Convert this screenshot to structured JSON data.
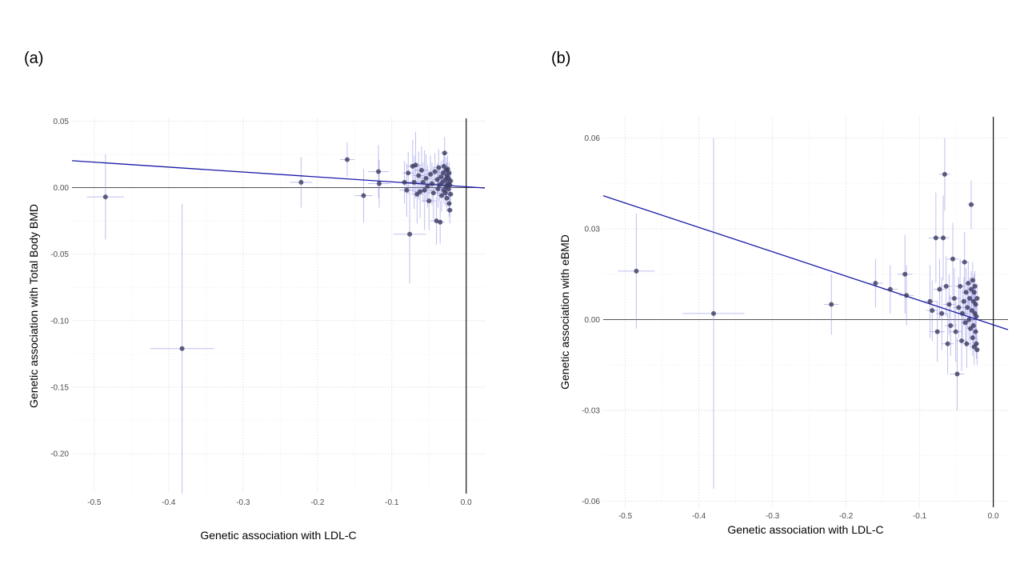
{
  "panels": [
    {
      "label": "(a)"
    },
    {
      "label": "(b)"
    }
  ],
  "chart_data": [
    {
      "type": "scatter",
      "xlabel": "Genetic association with LDL-C",
      "ylabel": "Genetic association with Total Body BMD",
      "xlim": [
        -0.53,
        0.025
      ],
      "ylim": [
        -0.23,
        0.052
      ],
      "xticks": [
        -0.5,
        -0.4,
        -0.3,
        -0.2,
        -0.1,
        0.0
      ],
      "xtick_labels": [
        "-0.5",
        "-0.4",
        "-0.3",
        "-0.2",
        "-0.1",
        "0.0"
      ],
      "yticks": [
        0.05,
        0.0,
        -0.05,
        -0.1,
        -0.15,
        -0.2
      ],
      "ytick_labels": [
        "0.05",
        "0.00",
        "-0.05",
        "-0.10",
        "-0.15",
        "-0.20"
      ],
      "grid": true,
      "regression_line": {
        "slope": -0.037,
        "intercept": 0.0006
      },
      "points": [
        {
          "x": -0.485,
          "y": -0.007,
          "xerr": 0.025,
          "yerr": 0.032
        },
        {
          "x": -0.382,
          "y": -0.121,
          "xerr": 0.043,
          "yerr": 0.109
        },
        {
          "x": -0.222,
          "y": 0.004,
          "xerr": 0.015,
          "yerr": 0.019
        },
        {
          "x": -0.16,
          "y": 0.021,
          "xerr": 0.01,
          "yerr": 0.013
        },
        {
          "x": -0.138,
          "y": -0.006,
          "xerr": 0.012,
          "yerr": 0.02
        },
        {
          "x": -0.118,
          "y": 0.012,
          "xerr": 0.014,
          "yerr": 0.02
        },
        {
          "x": -0.117,
          "y": 0.003,
          "xerr": 0.015,
          "yerr": 0.018
        },
        {
          "x": -0.083,
          "y": 0.004,
          "xerr": 0.01,
          "yerr": 0.016
        },
        {
          "x": -0.08,
          "y": -0.002,
          "xerr": 0.01,
          "yerr": 0.02
        },
        {
          "x": -0.078,
          "y": 0.011,
          "xerr": 0.008,
          "yerr": 0.016
        },
        {
          "x": -0.076,
          "y": -0.035,
          "xerr": 0.022,
          "yerr": 0.037
        },
        {
          "x": -0.072,
          "y": 0.016,
          "xerr": 0.008,
          "yerr": 0.02
        },
        {
          "x": -0.07,
          "y": 0.004,
          "xerr": 0.01,
          "yerr": 0.02
        },
        {
          "x": -0.068,
          "y": 0.017,
          "xerr": 0.008,
          "yerr": 0.025
        },
        {
          "x": -0.066,
          "y": -0.005,
          "xerr": 0.008,
          "yerr": 0.022
        },
        {
          "x": -0.064,
          "y": 0.009,
          "xerr": 0.008,
          "yerr": 0.018
        },
        {
          "x": -0.062,
          "y": -0.003,
          "xerr": 0.008,
          "yerr": 0.02
        },
        {
          "x": -0.06,
          "y": 0.013,
          "xerr": 0.01,
          "yerr": 0.018
        },
        {
          "x": -0.058,
          "y": 0.004,
          "xerr": 0.008,
          "yerr": 0.015
        },
        {
          "x": -0.056,
          "y": -0.002,
          "xerr": 0.01,
          "yerr": 0.03
        },
        {
          "x": -0.054,
          "y": 0.007,
          "xerr": 0.008,
          "yerr": 0.018
        },
        {
          "x": -0.052,
          "y": 0.001,
          "xerr": 0.008,
          "yerr": 0.016
        },
        {
          "x": -0.05,
          "y": -0.01,
          "xerr": 0.01,
          "yerr": 0.022
        },
        {
          "x": -0.048,
          "y": 0.01,
          "xerr": 0.008,
          "yerr": 0.014
        },
        {
          "x": -0.046,
          "y": 0.003,
          "xerr": 0.007,
          "yerr": 0.016
        },
        {
          "x": -0.044,
          "y": -0.004,
          "xerr": 0.008,
          "yerr": 0.02
        },
        {
          "x": -0.042,
          "y": 0.012,
          "xerr": 0.007,
          "yerr": 0.014
        },
        {
          "x": -0.04,
          "y": -0.025,
          "xerr": 0.008,
          "yerr": 0.018
        },
        {
          "x": -0.039,
          "y": 0.006,
          "xerr": 0.007,
          "yerr": 0.012
        },
        {
          "x": -0.038,
          "y": -0.001,
          "xerr": 0.007,
          "yerr": 0.014
        },
        {
          "x": -0.037,
          "y": 0.015,
          "xerr": 0.006,
          "yerr": 0.014
        },
        {
          "x": -0.036,
          "y": 0.002,
          "xerr": 0.006,
          "yerr": 0.012
        },
        {
          "x": -0.035,
          "y": -0.026,
          "xerr": 0.006,
          "yerr": 0.016
        },
        {
          "x": -0.034,
          "y": 0.008,
          "xerr": 0.006,
          "yerr": 0.012
        },
        {
          "x": -0.033,
          "y": -0.006,
          "xerr": 0.006,
          "yerr": 0.012
        },
        {
          "x": -0.032,
          "y": 0.004,
          "xerr": 0.006,
          "yerr": 0.01
        },
        {
          "x": -0.031,
          "y": 0.011,
          "xerr": 0.005,
          "yerr": 0.01
        },
        {
          "x": -0.03,
          "y": 0.016,
          "xerr": 0.005,
          "yerr": 0.01
        },
        {
          "x": -0.03,
          "y": -0.002,
          "xerr": 0.005,
          "yerr": 0.01
        },
        {
          "x": -0.029,
          "y": 0.026,
          "xerr": 0.005,
          "yerr": 0.012
        },
        {
          "x": -0.028,
          "y": 0.006,
          "xerr": 0.005,
          "yerr": 0.01
        },
        {
          "x": -0.028,
          "y": -0.004,
          "xerr": 0.005,
          "yerr": 0.01
        },
        {
          "x": -0.027,
          "y": 0.013,
          "xerr": 0.005,
          "yerr": 0.01
        },
        {
          "x": -0.027,
          "y": 0.001,
          "xerr": 0.005,
          "yerr": 0.008
        },
        {
          "x": -0.026,
          "y": 0.009,
          "xerr": 0.004,
          "yerr": 0.01
        },
        {
          "x": -0.026,
          "y": -0.008,
          "xerr": 0.004,
          "yerr": 0.01
        },
        {
          "x": -0.025,
          "y": 0.003,
          "xerr": 0.004,
          "yerr": 0.008
        },
        {
          "x": -0.025,
          "y": 0.014,
          "xerr": 0.004,
          "yerr": 0.01
        },
        {
          "x": -0.024,
          "y": -0.001,
          "xerr": 0.004,
          "yerr": 0.008
        },
        {
          "x": -0.024,
          "y": 0.007,
          "xerr": 0.004,
          "yerr": 0.008
        },
        {
          "x": -0.023,
          "y": -0.012,
          "xerr": 0.004,
          "yerr": 0.01
        },
        {
          "x": -0.023,
          "y": 0.011,
          "xerr": 0.004,
          "yerr": 0.008
        },
        {
          "x": -0.022,
          "y": 0.002,
          "xerr": 0.004,
          "yerr": 0.008
        },
        {
          "x": -0.022,
          "y": -0.017,
          "xerr": 0.004,
          "yerr": 0.01
        },
        {
          "x": -0.021,
          "y": 0.005,
          "xerr": 0.004,
          "yerr": 0.008
        },
        {
          "x": -0.021,
          "y": -0.005,
          "xerr": 0.004,
          "yerr": 0.008
        }
      ]
    },
    {
      "type": "scatter",
      "xlabel": "Genetic association with LDL-C",
      "ylabel": "Genetic association with eBMD",
      "xlim": [
        -0.53,
        0.02
      ],
      "ylim": [
        -0.062,
        0.067
      ],
      "xticks": [
        -0.5,
        -0.4,
        -0.3,
        -0.2,
        -0.1,
        0.0
      ],
      "xtick_labels": [
        "-0.5",
        "-0.4",
        "-0.3",
        "-0.2",
        "-0.1",
        "0.0"
      ],
      "yticks": [
        0.06,
        0.03,
        0.0,
        -0.03,
        -0.06
      ],
      "ytick_labels": [
        "0.06",
        "0.03",
        "0.00",
        "-0.03",
        "-0.06"
      ],
      "grid": true,
      "regression_line": {
        "slope": -0.0805,
        "intercept": -0.00175
      },
      "points": [
        {
          "x": -0.485,
          "y": 0.016,
          "xerr": 0.025,
          "yerr": 0.019
        },
        {
          "x": -0.38,
          "y": 0.002,
          "xerr": 0.042,
          "yerr": 0.058
        },
        {
          "x": -0.22,
          "y": 0.005,
          "xerr": 0.01,
          "yerr": 0.01
        },
        {
          "x": -0.16,
          "y": 0.012,
          "xerr": 0.01,
          "yerr": 0.008
        },
        {
          "x": -0.14,
          "y": 0.01,
          "xerr": 0.01,
          "yerr": 0.008
        },
        {
          "x": -0.12,
          "y": 0.015,
          "xerr": 0.01,
          "yerr": 0.013
        },
        {
          "x": -0.118,
          "y": 0.008,
          "xerr": 0.01,
          "yerr": 0.01
        },
        {
          "x": -0.086,
          "y": 0.006,
          "xerr": 0.01,
          "yerr": 0.012
        },
        {
          "x": -0.083,
          "y": 0.003,
          "xerr": 0.008,
          "yerr": 0.01
        },
        {
          "x": -0.078,
          "y": 0.027,
          "xerr": 0.01,
          "yerr": 0.015
        },
        {
          "x": -0.076,
          "y": -0.004,
          "xerr": 0.01,
          "yerr": 0.01
        },
        {
          "x": -0.073,
          "y": 0.01,
          "xerr": 0.008,
          "yerr": 0.01
        },
        {
          "x": -0.07,
          "y": 0.002,
          "xerr": 0.008,
          "yerr": 0.012
        },
        {
          "x": -0.068,
          "y": 0.027,
          "xerr": 0.008,
          "yerr": 0.014
        },
        {
          "x": -0.066,
          "y": 0.048,
          "xerr": 0.008,
          "yerr": 0.012
        },
        {
          "x": -0.064,
          "y": 0.011,
          "xerr": 0.008,
          "yerr": 0.01
        },
        {
          "x": -0.062,
          "y": -0.008,
          "xerr": 0.008,
          "yerr": 0.01
        },
        {
          "x": -0.06,
          "y": 0.005,
          "xerr": 0.008,
          "yerr": 0.01
        },
        {
          "x": -0.058,
          "y": -0.002,
          "xerr": 0.008,
          "yerr": 0.01
        },
        {
          "x": -0.055,
          "y": 0.02,
          "xerr": 0.008,
          "yerr": 0.012
        },
        {
          "x": -0.053,
          "y": 0.007,
          "xerr": 0.008,
          "yerr": 0.01
        },
        {
          "x": -0.051,
          "y": -0.004,
          "xerr": 0.008,
          "yerr": 0.01
        },
        {
          "x": -0.049,
          "y": -0.018,
          "xerr": 0.01,
          "yerr": 0.012
        },
        {
          "x": -0.047,
          "y": 0.004,
          "xerr": 0.008,
          "yerr": 0.01
        },
        {
          "x": -0.045,
          "y": 0.011,
          "xerr": 0.007,
          "yerr": 0.009
        },
        {
          "x": -0.043,
          "y": -0.007,
          "xerr": 0.007,
          "yerr": 0.01
        },
        {
          "x": -0.042,
          "y": 0.002,
          "xerr": 0.007,
          "yerr": 0.008
        },
        {
          "x": -0.04,
          "y": 0.006,
          "xerr": 0.006,
          "yerr": 0.008
        },
        {
          "x": -0.039,
          "y": 0.019,
          "xerr": 0.006,
          "yerr": 0.01
        },
        {
          "x": -0.038,
          "y": -0.001,
          "xerr": 0.006,
          "yerr": 0.008
        },
        {
          "x": -0.037,
          "y": 0.009,
          "xerr": 0.006,
          "yerr": 0.008
        },
        {
          "x": -0.036,
          "y": -0.008,
          "xerr": 0.006,
          "yerr": 0.008
        },
        {
          "x": -0.035,
          "y": 0.004,
          "xerr": 0.005,
          "yerr": 0.007
        },
        {
          "x": -0.034,
          "y": 0.012,
          "xerr": 0.005,
          "yerr": 0.007
        },
        {
          "x": -0.033,
          "y": 0.0,
          "xerr": 0.005,
          "yerr": 0.007
        },
        {
          "x": -0.032,
          "y": 0.007,
          "xerr": 0.005,
          "yerr": 0.007
        },
        {
          "x": -0.031,
          "y": -0.003,
          "xerr": 0.005,
          "yerr": 0.007
        },
        {
          "x": -0.03,
          "y": 0.038,
          "xerr": 0.005,
          "yerr": 0.008
        },
        {
          "x": -0.03,
          "y": 0.01,
          "xerr": 0.005,
          "yerr": 0.006
        },
        {
          "x": -0.029,
          "y": 0.003,
          "xerr": 0.004,
          "yerr": 0.006
        },
        {
          "x": -0.028,
          "y": -0.006,
          "xerr": 0.004,
          "yerr": 0.006
        },
        {
          "x": -0.028,
          "y": 0.013,
          "xerr": 0.004,
          "yerr": 0.006
        },
        {
          "x": -0.027,
          "y": 0.006,
          "xerr": 0.004,
          "yerr": 0.006
        },
        {
          "x": -0.027,
          "y": -0.002,
          "xerr": 0.004,
          "yerr": 0.006
        },
        {
          "x": -0.026,
          "y": 0.009,
          "xerr": 0.004,
          "yerr": 0.006
        },
        {
          "x": -0.026,
          "y": -0.009,
          "xerr": 0.004,
          "yerr": 0.006
        },
        {
          "x": -0.025,
          "y": 0.002,
          "xerr": 0.004,
          "yerr": 0.005
        },
        {
          "x": -0.025,
          "y": 0.011,
          "xerr": 0.004,
          "yerr": 0.005
        },
        {
          "x": -0.024,
          "y": -0.004,
          "xerr": 0.004,
          "yerr": 0.005
        },
        {
          "x": -0.024,
          "y": 0.005,
          "xerr": 0.004,
          "yerr": 0.005
        },
        {
          "x": -0.023,
          "y": -0.008,
          "xerr": 0.004,
          "yerr": 0.005
        },
        {
          "x": -0.023,
          "y": 0.001,
          "xerr": 0.004,
          "yerr": 0.005
        },
        {
          "x": -0.022,
          "y": 0.007,
          "xerr": 0.004,
          "yerr": 0.005
        },
        {
          "x": -0.022,
          "y": -0.01,
          "xerr": 0.004,
          "yerr": 0.005
        }
      ]
    }
  ]
}
